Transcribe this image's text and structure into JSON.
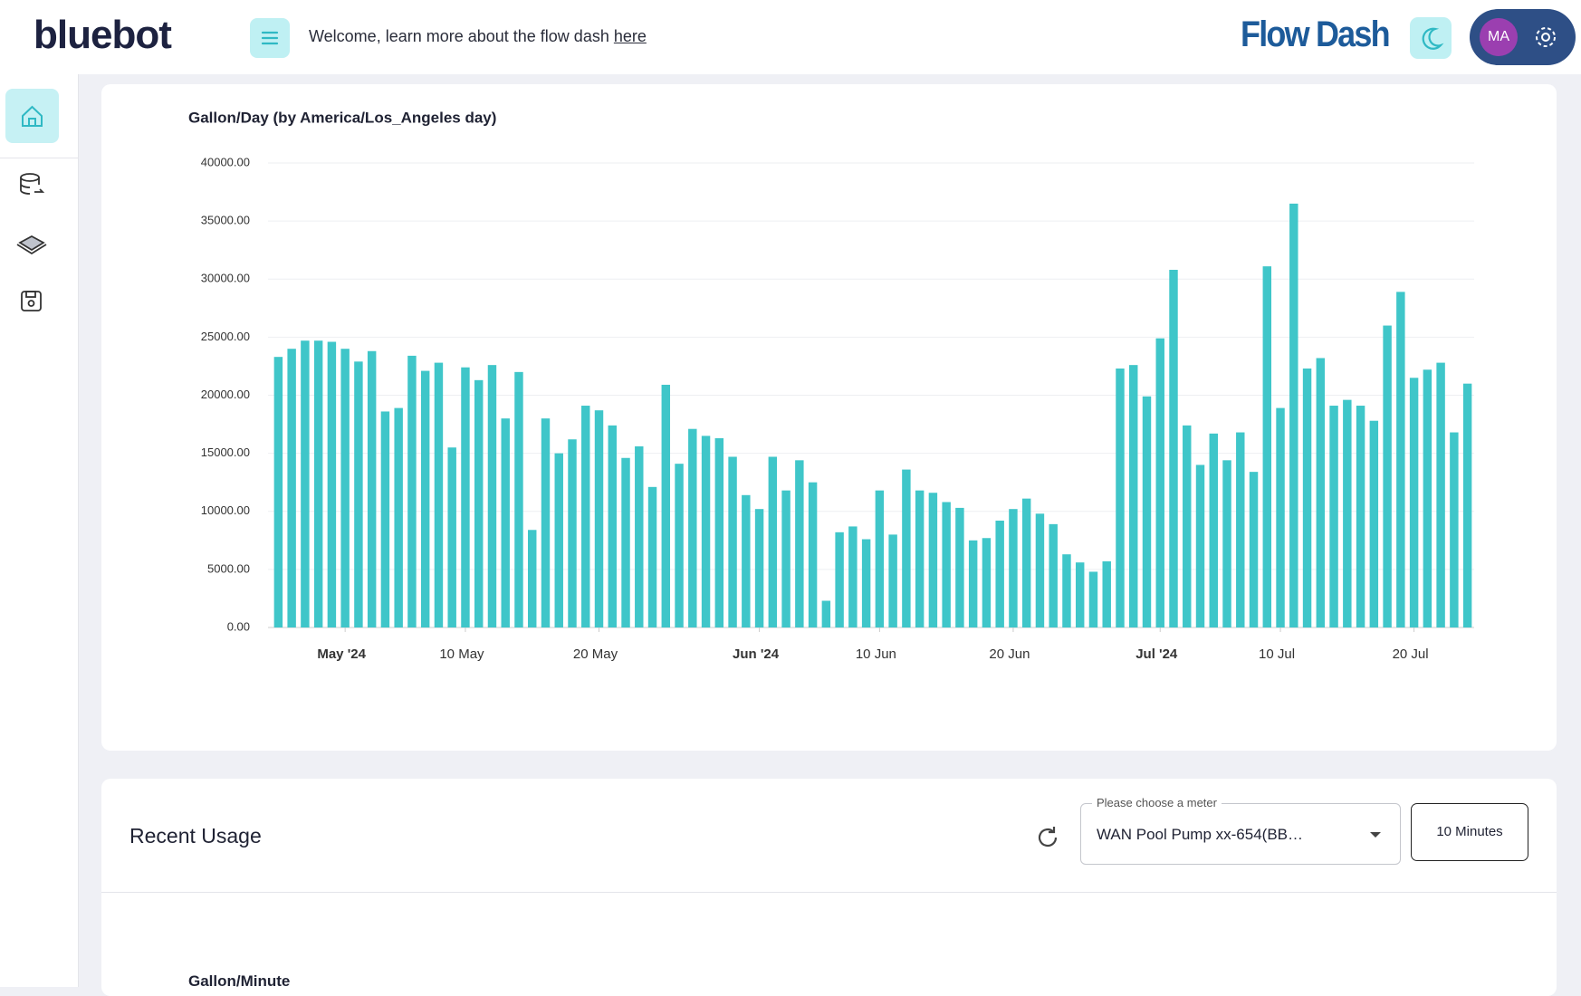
{
  "header": {
    "logo": "bluebot",
    "welcome": "Welcome, learn more about the flow dash",
    "link": "here",
    "brand": "Flow Dash",
    "avatar": "MA"
  },
  "chart_data": {
    "type": "bar",
    "title": "Gallon/Day (by America/Los_Angeles day)",
    "color": "#3fc6c9",
    "categories": [
      null,
      null,
      null,
      null,
      null,
      "May '24",
      null,
      null,
      null,
      null,
      null,
      null,
      null,
      null,
      "10 May",
      null,
      null,
      null,
      null,
      null,
      null,
      null,
      null,
      null,
      "20 May",
      null,
      null,
      null,
      null,
      null,
      null,
      null,
      null,
      null,
      null,
      null,
      "Jun '24",
      null,
      null,
      null,
      null,
      null,
      null,
      null,
      null,
      "10 Jun",
      null,
      null,
      null,
      null,
      null,
      null,
      null,
      null,
      null,
      "20 Jun",
      null,
      null,
      null,
      null,
      null,
      null,
      null,
      null,
      null,
      null,
      "Jul '24",
      null,
      null,
      null,
      null,
      null,
      null,
      null,
      null,
      "10 Jul",
      null,
      null,
      null,
      null,
      null,
      null,
      null,
      null,
      null,
      "20 Jul",
      null,
      null,
      null,
      null
    ],
    "values": [
      23300,
      24000,
      24700,
      24700,
      24600,
      24000,
      22900,
      23800,
      18600,
      18900,
      23400,
      22100,
      22800,
      15500,
      22400,
      21300,
      22600,
      18000,
      22000,
      8400,
      18000,
      15000,
      16200,
      19100,
      18700,
      17400,
      14600,
      15600,
      12100,
      20900,
      14100,
      17100,
      16500,
      16300,
      14700,
      11400,
      10200,
      14700,
      11800,
      14400,
      12500,
      2300,
      8200,
      8700,
      7600,
      11800,
      8000,
      13600,
      11800,
      11600,
      10800,
      10300,
      7500,
      7700,
      9200,
      10200,
      11100,
      9800,
      8900,
      6300,
      5600,
      4800,
      5700,
      22300,
      22600,
      19900,
      24900,
      30800,
      17400,
      14000,
      16700,
      14400,
      16800,
      13400,
      31100,
      18900,
      36500,
      22300,
      23200,
      19100,
      19600,
      19100,
      17800,
      26000,
      28900,
      21500,
      22200,
      22800,
      16800,
      21000
    ],
    "ylim": [
      0,
      40000
    ],
    "yticks": [
      {
        "value": 0,
        "label": "0.00"
      },
      {
        "value": 5000,
        "label": "5000.00"
      },
      {
        "value": 10000,
        "label": "10000.00"
      },
      {
        "value": 15000,
        "label": "15000.00"
      },
      {
        "value": 20000,
        "label": "20000.00"
      },
      {
        "value": 25000,
        "label": "25000.00"
      },
      {
        "value": 30000,
        "label": "30000.00"
      },
      {
        "value": 35000,
        "label": "35000.00"
      },
      {
        "value": 40000,
        "label": "40000.00"
      }
    ],
    "grid": true
  },
  "recent": {
    "title": "Recent Usage",
    "select_label": "Please choose a meter",
    "select_value": "WAN Pool Pump xx-654(BB…",
    "button": "10 Minutes",
    "next_chart_title": "Gallon/Minute"
  }
}
